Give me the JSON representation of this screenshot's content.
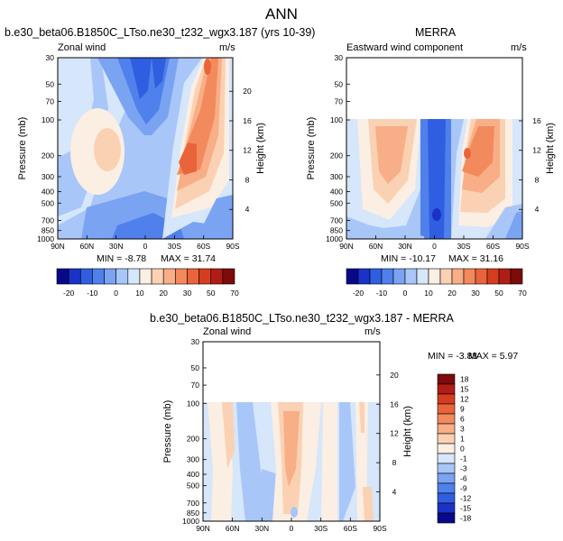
{
  "figure_title": "ANN",
  "panels": [
    {
      "title": "b.e30_beta06.B1850C_LTso.ne30_t232_wgx3.187 (yrs 10-39)",
      "field_label": "Zonal wind",
      "units": "m/s",
      "min_label": "MIN = -8.78",
      "max_label": "MAX = 31.74"
    },
    {
      "title": "MERRA",
      "field_label": "Eastward wind component",
      "units": "m/s",
      "min_label": "MIN = -10.17",
      "max_label": "MAX = 31.16"
    },
    {
      "title": "b.e30_beta06.B1850C_LTso.ne30_t232_wgx3.187 - MERRA",
      "field_label": "Zonal wind",
      "units": "m/s",
      "min_label": "MIN = -3.88",
      "max_label": "MAX = 5.97"
    }
  ],
  "chart_data": [
    {
      "type": "heatmap",
      "title": "b.e30_beta06.B1850C_LTso.ne30_t232_wgx3.187 (yrs 10-39)",
      "field": "Zonal wind",
      "units": "m/s",
      "xlabel": "",
      "ylabel": "Pressure (mb)",
      "y2label": "Height (km)",
      "x_ticks": [
        "90N",
        "60N",
        "30N",
        "0",
        "30S",
        "60S",
        "90S"
      ],
      "y_ticks": [
        30,
        50,
        70,
        100,
        200,
        300,
        400,
        500,
        700,
        850,
        1000
      ],
      "y2_ticks": [
        4,
        8,
        12,
        16,
        20
      ],
      "ylim": [
        1000,
        30
      ],
      "y_scale": "log",
      "min": -8.78,
      "max": 31.74,
      "data_top_mb": 30,
      "color_levels": [
        -20,
        -15,
        -10,
        -5,
        0,
        5,
        10,
        15,
        20,
        25,
        30,
        40,
        50,
        60,
        70
      ],
      "colorbar_labels": [
        "-20",
        "-10",
        "0",
        "10",
        "20",
        "30",
        "50",
        "70"
      ]
    },
    {
      "type": "heatmap",
      "title": "MERRA",
      "field": "Eastward wind component",
      "units": "m/s",
      "xlabel": "",
      "ylabel": "Pressure (mb)",
      "y2label": "Height (km)",
      "x_ticks": [
        "90N",
        "60N",
        "30N",
        "0",
        "30S",
        "60S",
        "90S"
      ],
      "y_ticks": [
        30,
        50,
        70,
        100,
        200,
        300,
        400,
        500,
        700,
        850,
        1000
      ],
      "y2_ticks": [
        4,
        8,
        12,
        16
      ],
      "ylim": [
        1000,
        30
      ],
      "y_scale": "log",
      "min": -10.17,
      "max": 31.16,
      "data_top_mb": 100,
      "color_levels": [
        -20,
        -15,
        -10,
        -5,
        0,
        5,
        10,
        15,
        20,
        25,
        30,
        40,
        50,
        60,
        70
      ],
      "colorbar_labels": [
        "-20",
        "-10",
        "0",
        "10",
        "20",
        "30",
        "50",
        "70"
      ]
    },
    {
      "type": "heatmap",
      "title": "b.e30_beta06.B1850C_LTso.ne30_t232_wgx3.187 - MERRA",
      "field": "Zonal wind",
      "units": "m/s",
      "xlabel": "",
      "ylabel": "Pressure (mb)",
      "y2label": "Height (km)",
      "x_ticks": [
        "90N",
        "60N",
        "30N",
        "0",
        "30S",
        "60S",
        "90S"
      ],
      "y_ticks": [
        30,
        50,
        70,
        100,
        200,
        300,
        400,
        500,
        700,
        850,
        1000
      ],
      "y2_ticks": [
        4,
        8,
        12,
        16,
        20
      ],
      "ylim": [
        1000,
        30
      ],
      "y_scale": "log",
      "min": -3.88,
      "max": 5.97,
      "data_top_mb": 100,
      "color_levels": [
        -18,
        -15,
        -12,
        -9,
        -6,
        -3,
        -1,
        0,
        1,
        3,
        6,
        9,
        12,
        15,
        18
      ],
      "colorbar_labels": [
        "18",
        "15",
        "12",
        "9",
        "6",
        "3",
        "1",
        "0",
        "-1",
        "-3",
        "-6",
        "-9",
        "-12",
        "-15",
        "-18"
      ]
    }
  ],
  "colors": {
    "abs_scale": [
      "#08088a",
      "#1a32c8",
      "#2f5fe0",
      "#4f80ec",
      "#7aa3f2",
      "#a8c6f8",
      "#d6e6fb",
      "#fbeee3",
      "#fbd1b3",
      "#f8ae86",
      "#f28a5d",
      "#e9643a",
      "#d63d1f",
      "#b01d14",
      "#7c0b0b"
    ],
    "diff_scale": [
      "#7c0b0b",
      "#b01d14",
      "#d63d1f",
      "#e9643a",
      "#f28a5d",
      "#f8ae86",
      "#fbd1b3",
      "#fbeee3",
      "#d6e6fb",
      "#a8c6f8",
      "#7aa3f2",
      "#4f80ec",
      "#2f5fe0",
      "#1a32c8",
      "#08088a"
    ]
  }
}
